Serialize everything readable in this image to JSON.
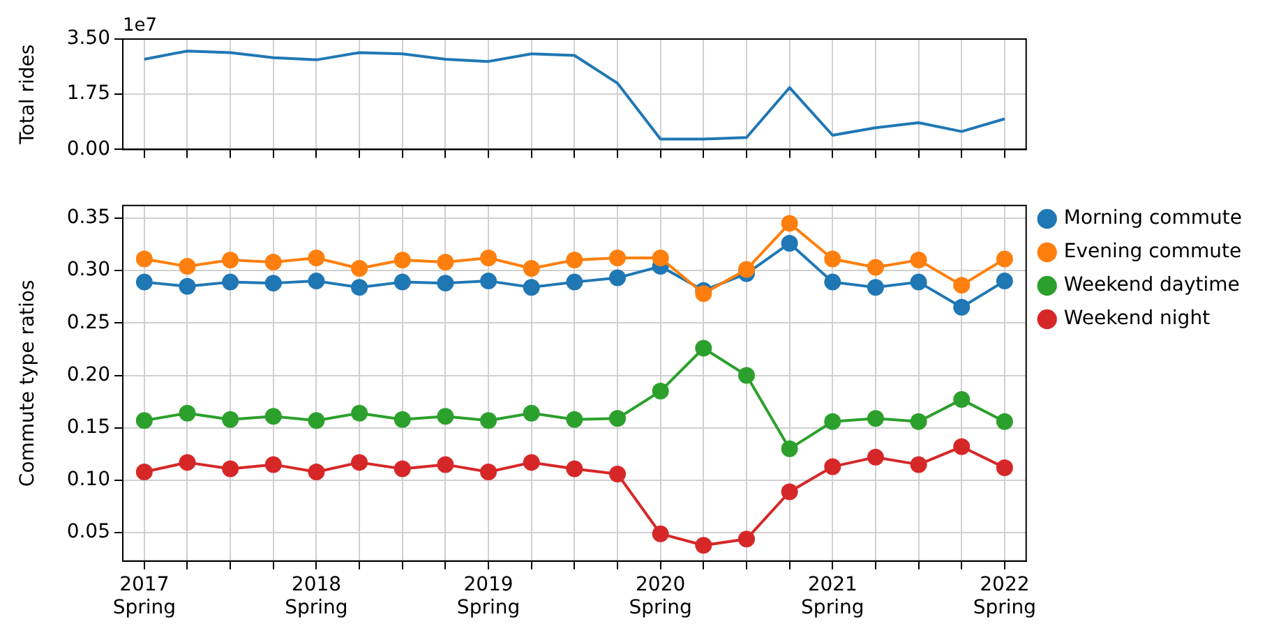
{
  "chart_data": [
    {
      "type": "line",
      "ylabel": "Total rides",
      "annotations": [
        "1e7"
      ],
      "categories": [
        null,
        null,
        null,
        null,
        null,
        null,
        null,
        null,
        null,
        null,
        null,
        null,
        null,
        null,
        null,
        null,
        null,
        null,
        null,
        null,
        null
      ],
      "series": [
        {
          "color": "#1f77b4",
          "values": [
            2.86,
            3.12,
            3.07,
            2.91,
            2.84,
            3.07,
            3.03,
            2.86,
            2.79,
            3.03,
            2.98,
            2.1,
            0.33,
            0.33,
            0.38,
            1.96,
            0.45,
            0.69,
            0.85,
            0.57,
            0.97
          ]
        }
      ],
      "ylim": [
        0,
        3.5
      ],
      "yticks": [
        {
          "value": 0,
          "label": "0.00"
        },
        1.75,
        {
          "value": 3.5,
          "label": "3.50"
        }
      ],
      "grid": true,
      "marker": "none"
    },
    {
      "type": "line",
      "ylabel": "Commute type ratios",
      "categories": [
        "2017\nSpring",
        null,
        null,
        null,
        "2018\nSpring",
        null,
        null,
        null,
        "2019\nSpring",
        null,
        null,
        null,
        "2020\nSpring",
        null,
        null,
        null,
        "2021\nSpring",
        null,
        null,
        null,
        "2022\nSpring"
      ],
      "series": [
        {
          "name": "Morning commute",
          "color": "#1f77b4",
          "values": [
            0.289,
            0.285,
            0.289,
            0.288,
            0.29,
            0.284,
            0.289,
            0.288,
            0.29,
            0.284,
            0.289,
            0.293,
            0.304,
            0.281,
            0.297,
            0.326,
            0.289,
            0.284,
            0.289,
            0.265,
            0.29
          ]
        },
        {
          "name": "Evening commute",
          "color": "#ff7f0e",
          "values": [
            0.311,
            0.304,
            0.31,
            0.308,
            0.312,
            0.302,
            0.31,
            0.308,
            0.312,
            0.302,
            0.31,
            0.312,
            0.312,
            0.278,
            0.301,
            0.345,
            0.311,
            0.303,
            0.31,
            0.286,
            0.311
          ]
        },
        {
          "name": "Weekend daytime",
          "color": "#2ca02c",
          "values": [
            0.157,
            0.164,
            0.158,
            0.161,
            0.157,
            0.164,
            0.158,
            0.161,
            0.157,
            0.164,
            0.158,
            0.159,
            0.185,
            0.226,
            0.2,
            0.13,
            0.156,
            0.159,
            0.156,
            0.177,
            0.156
          ]
        },
        {
          "name": "Weekend night",
          "color": "#d62728",
          "values": [
            0.108,
            0.117,
            0.111,
            0.115,
            0.108,
            0.117,
            0.111,
            0.115,
            0.108,
            0.117,
            0.111,
            0.106,
            0.049,
            0.038,
            0.044,
            0.089,
            0.113,
            0.122,
            0.115,
            0.132,
            0.112
          ]
        }
      ],
      "ylim": [
        0.023,
        0.362
      ],
      "yticks": [
        0.05,
        {
          "value": 0.1,
          "label": "0.10"
        },
        0.15,
        {
          "value": 0.2,
          "label": "0.20"
        },
        0.25,
        {
          "value": 0.3,
          "label": "0.30"
        },
        0.35
      ],
      "grid": true,
      "legend": "right",
      "marker": "circle"
    }
  ]
}
